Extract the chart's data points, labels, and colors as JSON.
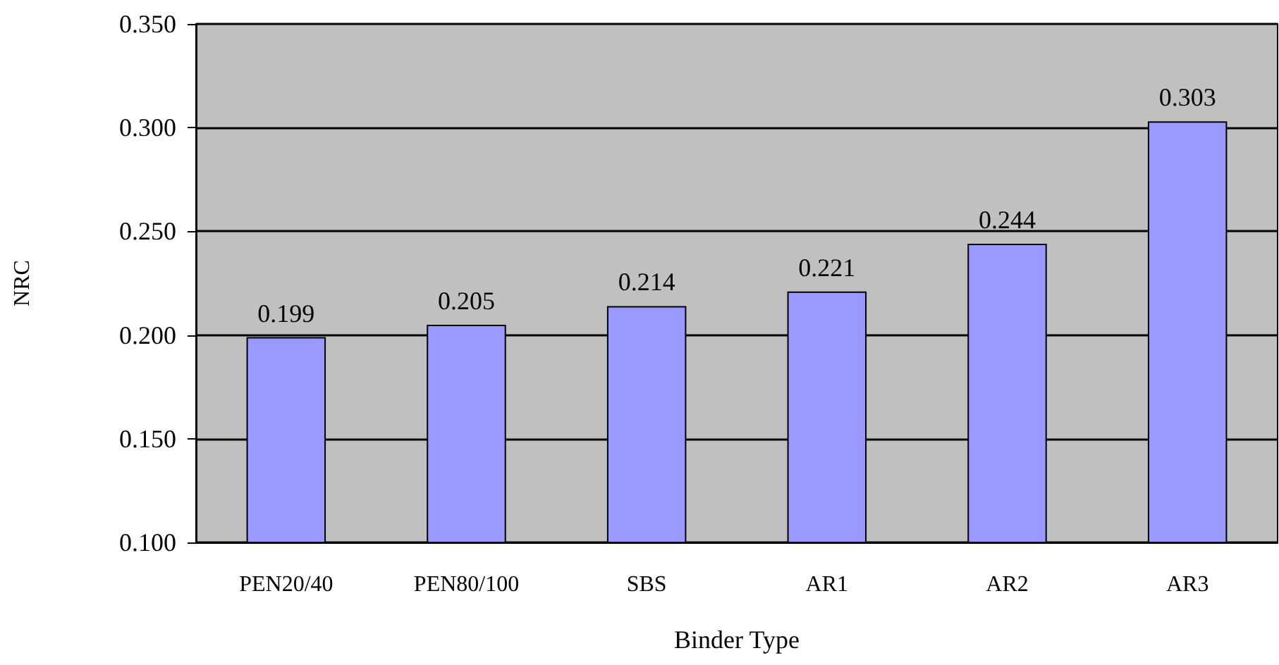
{
  "chart_data": {
    "type": "bar",
    "xlabel": "Binder Type",
    "ylabel": "NRC",
    "categories": [
      "PEN20/40",
      "PEN80/100",
      "SBS",
      "AR1",
      "AR2",
      "AR3"
    ],
    "values": [
      0.199,
      0.205,
      0.214,
      0.221,
      0.244,
      0.303
    ],
    "color": "#9999ff",
    "ylim": [
      0.1,
      0.35
    ],
    "yticks": [
      {
        "value": 0.1,
        "label": "0.100"
      },
      {
        "value": 0.15,
        "label": "0.150"
      },
      {
        "value": 0.2,
        "label": "0.200"
      },
      {
        "value": 0.25,
        "label": "0.250"
      },
      {
        "value": 0.3,
        "label": "0.300"
      },
      {
        "value": 0.35,
        "label": "0.350"
      }
    ],
    "grid": "y",
    "data_labels": true
  }
}
